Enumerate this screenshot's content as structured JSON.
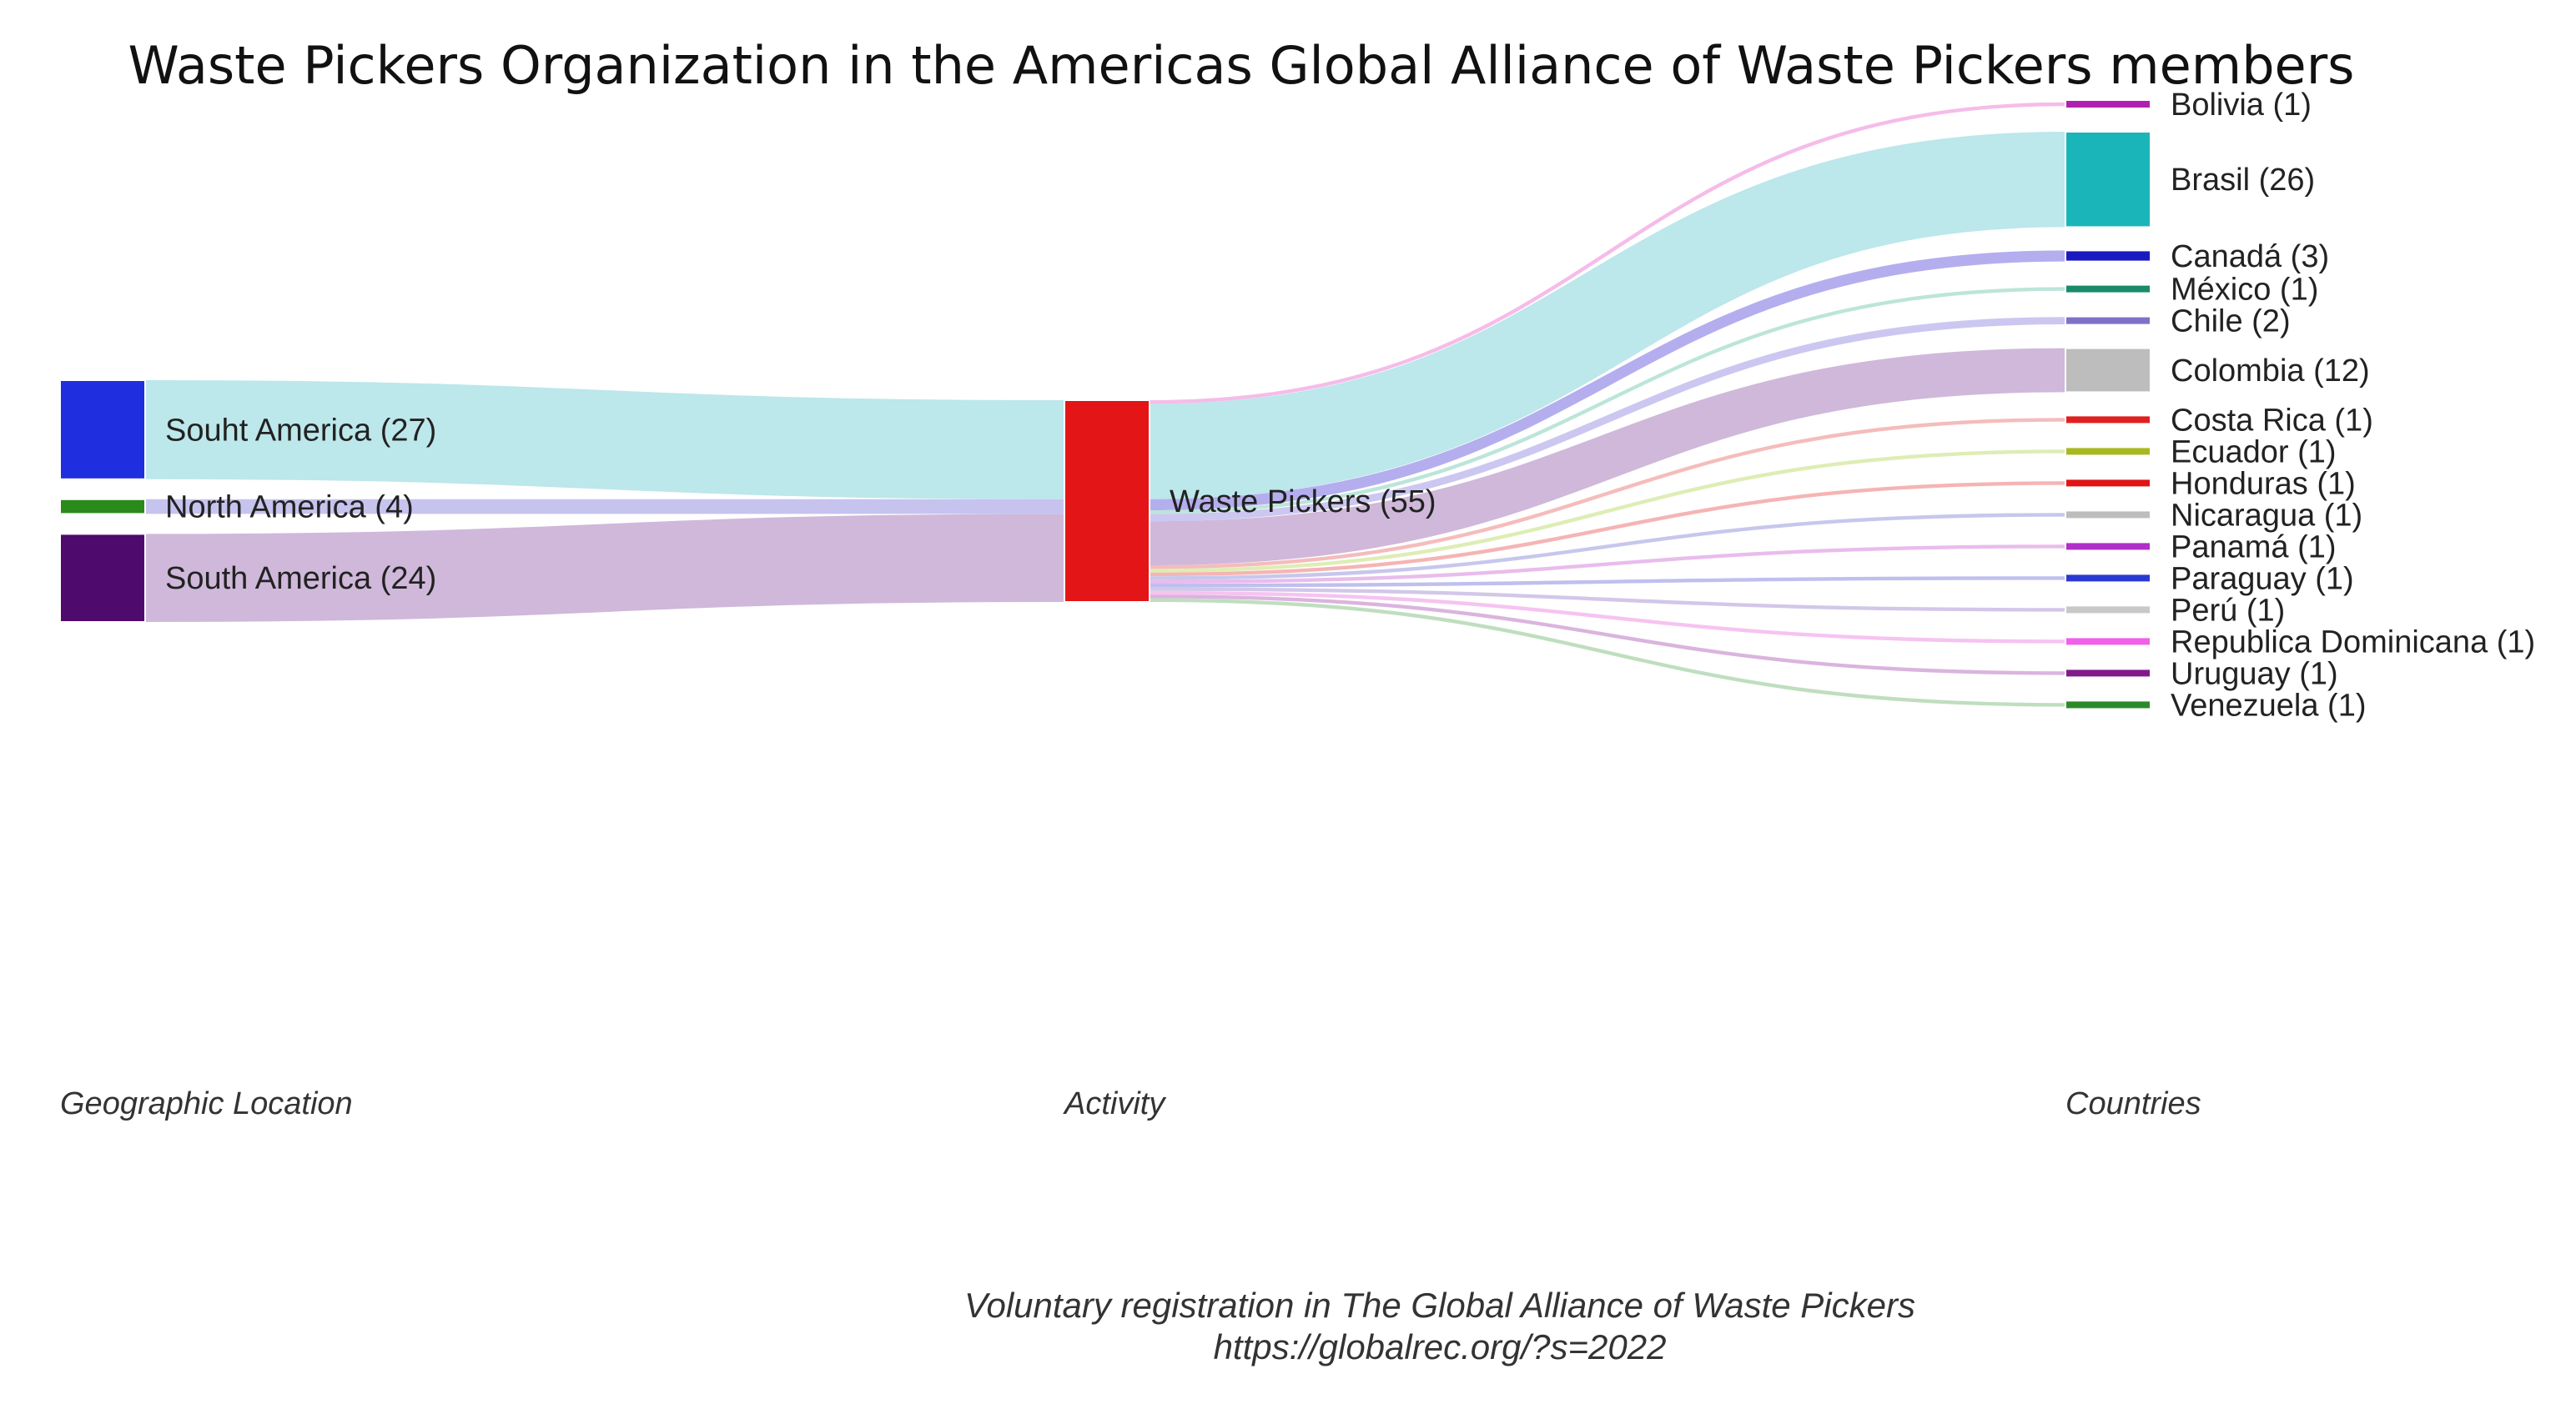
{
  "chart_data": {
    "type": "sankey",
    "title": "Waste Pickers Organization in the Americas Global Alliance of Waste Pickers members",
    "columns": [
      "Geographic Location",
      "Activity",
      "Countries"
    ],
    "source_note": [
      "Voluntary registration in The Global Alliance of Waste Pickers",
      "https://globalrec.org/?s=2022"
    ],
    "nodes": [
      {
        "id": "souht_america",
        "label": "Souht America (27)",
        "column": 0,
        "value": 27,
        "color": "#1f2fe0"
      },
      {
        "id": "north_america",
        "label": "North America (4)",
        "column": 0,
        "value": 4,
        "color": "#2a8a1a"
      },
      {
        "id": "south_america",
        "label": "South America (24)",
        "column": 0,
        "value": 24,
        "color": "#4f0a6e"
      },
      {
        "id": "waste_pickers",
        "label": "Waste Pickers (55)",
        "column": 1,
        "value": 55,
        "color": "#e31516"
      },
      {
        "id": "bolivia",
        "label": "Bolivia (1)",
        "column": 2,
        "value": 1,
        "color": "#b020b0"
      },
      {
        "id": "brasil",
        "label": "Brasil (26)",
        "column": 2,
        "value": 26,
        "color": "#1ab5b8"
      },
      {
        "id": "canada",
        "label": "Canadá (3)",
        "column": 2,
        "value": 3,
        "color": "#1a1ac0"
      },
      {
        "id": "mexico",
        "label": "México (1)",
        "column": 2,
        "value": 1,
        "color": "#1a8a6a"
      },
      {
        "id": "chile",
        "label": "Chile (2)",
        "column": 2,
        "value": 2,
        "color": "#8070c8"
      },
      {
        "id": "colombia",
        "label": "Colombia (12)",
        "column": 2,
        "value": 12,
        "color": "#bdbdbd"
      },
      {
        "id": "costa_rica",
        "label": "Costa Rica (1)",
        "column": 2,
        "value": 1,
        "color": "#e02020"
      },
      {
        "id": "ecuador",
        "label": "Ecuador (1)",
        "column": 2,
        "value": 1,
        "color": "#a8b820"
      },
      {
        "id": "honduras",
        "label": "Honduras (1)",
        "column": 2,
        "value": 1,
        "color": "#e01515"
      },
      {
        "id": "nicaragua",
        "label": "Nicaragua (1)",
        "column": 2,
        "value": 1,
        "color": "#bdbdbd"
      },
      {
        "id": "panama",
        "label": "Panamá (1)",
        "column": 2,
        "value": 1,
        "color": "#b030c8"
      },
      {
        "id": "paraguay",
        "label": "Paraguay (1)",
        "column": 2,
        "value": 1,
        "color": "#2a3ad0"
      },
      {
        "id": "peru",
        "label": "Perú (1)",
        "column": 2,
        "value": 1,
        "color": "#c8c8c8"
      },
      {
        "id": "republica_dominicana",
        "label": "Republica Dominicana (1)",
        "column": 2,
        "value": 1,
        "color": "#f060e8"
      },
      {
        "id": "uruguay",
        "label": "Uruguay (1)",
        "column": 2,
        "value": 1,
        "color": "#801a88"
      },
      {
        "id": "venezuela",
        "label": "Venezuela (1)",
        "column": 2,
        "value": 1,
        "color": "#2a8a2a"
      }
    ],
    "links": [
      {
        "source": "souht_america",
        "target": "waste_pickers",
        "value": 27,
        "color": "#b8e6ea"
      },
      {
        "source": "north_america",
        "target": "waste_pickers",
        "value": 4,
        "color": "#c4c0ee"
      },
      {
        "source": "south_america",
        "target": "waste_pickers",
        "value": 24,
        "color": "#ccb4d8"
      },
      {
        "source": "waste_pickers",
        "target": "bolivia",
        "value": 1,
        "color": "#f4b8e8"
      },
      {
        "source": "waste_pickers",
        "target": "brasil",
        "value": 26,
        "color": "#b8e6ea"
      },
      {
        "source": "waste_pickers",
        "target": "canada",
        "value": 3,
        "color": "#b0aaee"
      },
      {
        "source": "waste_pickers",
        "target": "mexico",
        "value": 1,
        "color": "#b8e4d8"
      },
      {
        "source": "waste_pickers",
        "target": "chile",
        "value": 2,
        "color": "#c8c4f0"
      },
      {
        "source": "waste_pickers",
        "target": "colombia",
        "value": 12,
        "color": "#ccb4d8"
      },
      {
        "source": "waste_pickers",
        "target": "costa_rica",
        "value": 1,
        "color": "#f4b8b8"
      },
      {
        "source": "waste_pickers",
        "target": "ecuador",
        "value": 1,
        "color": "#dcecb0"
      },
      {
        "source": "waste_pickers",
        "target": "honduras",
        "value": 1,
        "color": "#f4b0b0"
      },
      {
        "source": "waste_pickers",
        "target": "nicaragua",
        "value": 1,
        "color": "#c4c4ec"
      },
      {
        "source": "waste_pickers",
        "target": "panama",
        "value": 1,
        "color": "#e8b8ec"
      },
      {
        "source": "waste_pickers",
        "target": "paraguay",
        "value": 1,
        "color": "#bcbcee"
      },
      {
        "source": "waste_pickers",
        "target": "peru",
        "value": 1,
        "color": "#d0c4e8"
      },
      {
        "source": "waste_pickers",
        "target": "republica_dominicana",
        "value": 1,
        "color": "#f6c0f0"
      },
      {
        "source": "waste_pickers",
        "target": "uruguay",
        "value": 1,
        "color": "#d8b0dc"
      },
      {
        "source": "waste_pickers",
        "target": "venezuela",
        "value": 1,
        "color": "#bcdcbc"
      }
    ]
  }
}
